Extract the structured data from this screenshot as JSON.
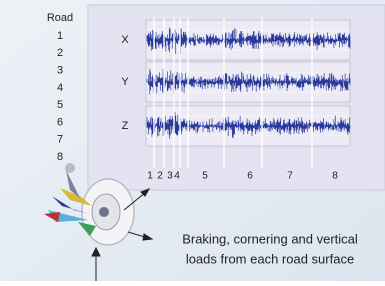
{
  "road_list": {
    "title": "Road",
    "items": [
      "1",
      "2",
      "3",
      "4",
      "5",
      "6",
      "7",
      "8"
    ]
  },
  "channels": [
    "X",
    "Y",
    "Z"
  ],
  "segments": [
    "1",
    "2",
    "3",
    "4",
    "5",
    "6",
    "7",
    "8"
  ],
  "caption": [
    "Braking, cornering and vertical",
    "loads from each road surface"
  ]
}
